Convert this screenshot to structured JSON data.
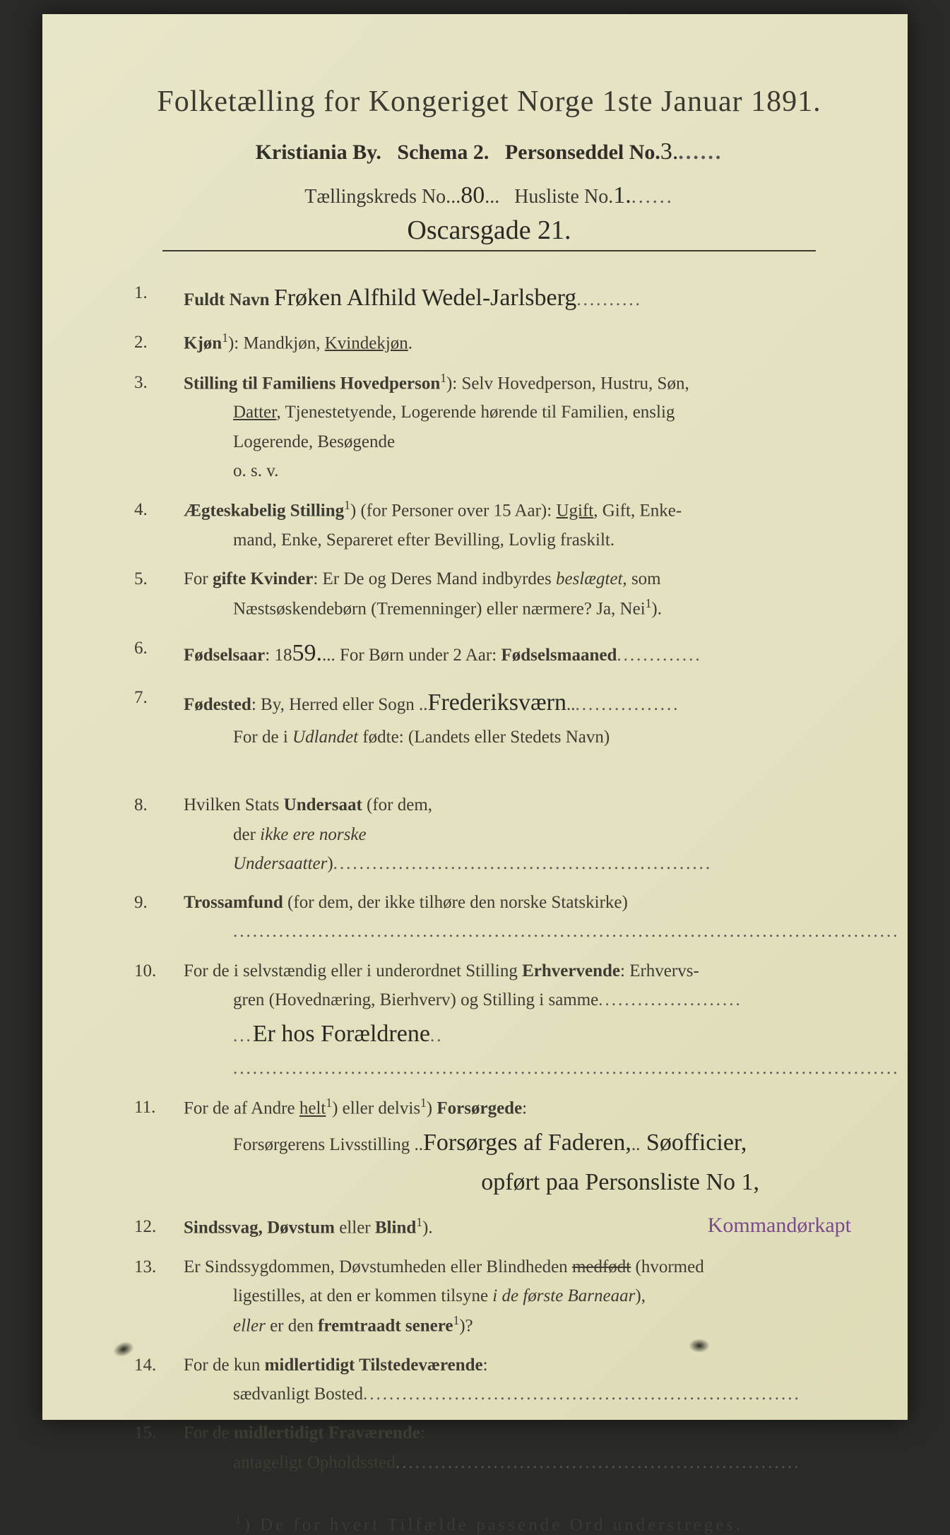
{
  "colors": {
    "paper_bg": "#e4e2c2",
    "print_ink": "#3a3a30",
    "handwriting_ink": "#2a2a24",
    "purple_ink": "#7a4a8a",
    "outer_bg": "#2a2a28"
  },
  "typography": {
    "title_fontsize": 42,
    "subtitle_fontsize": 30,
    "body_fontsize": 25,
    "handwriting_fontsize": 34,
    "letter_spacing_footnote": 4
  },
  "header": {
    "title": "Folketælling for Kongeriget Norge 1ste Januar 1891.",
    "city": "Kristiania By.",
    "schema": "Schema 2.",
    "personseddel_label": "Personseddel No.",
    "personseddel_no": "3.",
    "taellingskreds_label": "Tællingskreds No.",
    "taellingskreds_no": "80",
    "husliste_label": "Husliste No.",
    "husliste_no": "1.",
    "address": "Oscarsgade 21."
  },
  "items": [
    {
      "label": "Fuldt Navn",
      "value_hand": "Frøken Alfhild Wedel-Jarlsberg",
      "trailing_dots": true
    },
    {
      "label": "Kjøn",
      "sup": "1",
      "text_after": "): Mandkjøn, ",
      "underlined": "Kvindekjøn",
      "tail": "."
    },
    {
      "label": "Stilling til Familiens Hovedperson",
      "sup": "1",
      "text_after": "): Selv Hovedperson, Hustru, Søn,",
      "line2_underlined": "Datter",
      "line2_tail": ", Tjenestetyende, Logerende hørende til Familien, enslig",
      "line3": "Logerende, Besøgende",
      "line4": "o. s. v."
    },
    {
      "label": "Ægteskabelig Stilling",
      "sup": "1",
      "text_after": ") (for Personer over 15 Aar): ",
      "underlined": "Ugift",
      "tail": ", Gift, Enke-",
      "line2": "mand, Enke, Separeret efter Bevilling, Lovlig fraskilt."
    },
    {
      "pre": "For ",
      "label": "gifte Kvinder",
      "text_after": ": Er De og Deres Mand indbyrdes ",
      "ital1": "beslægtet,",
      "tail": " som",
      "line2": "Næstsøskendebørn (Tremenninger) eller nærmere?  Ja, Nei",
      "line2_sup": "1",
      "line2_tail": ")."
    },
    {
      "label": "Fødselsaar",
      "text_after": ": 18",
      "value_hand": "59.",
      "mid": "...  For Børn under 2 Aar: ",
      "label2": "Fødselsmaaned",
      "trailing_dots": true
    },
    {
      "label": "Fødested",
      "text_after": ": By, Herred eller Sogn ",
      "value_hand": "Frederiksværn",
      "trailing_dots": true,
      "line2_pre": "For de i ",
      "line2_ital": "Udlandet",
      "line2_tail": " fødte: (Landets eller Stedets Navn)"
    },
    {
      "pre": "Hvilken Stats ",
      "label": "Undersaat",
      "text_after": " (for dem,",
      "line2_pre": "der ",
      "line2_ital": "ikke ere norske Undersaatter",
      "line2_tail": ")",
      "line2_dots": true
    },
    {
      "label": "Trossamfund",
      "text_after": "  (for dem, der ikke tilhøre den norske Statskirke)",
      "line2_dots_full": true
    },
    {
      "pre": "For de i selvstændig eller i underordnet Stilling ",
      "label": "Erhvervende",
      "text_after": ": Erhvervs-",
      "line2": "gren (Hovednæring, Bierhverv) og Stilling i samme",
      "line2_dots": true,
      "line3_hand": "Er hos Forældrene",
      "line4_dots_full": true
    },
    {
      "pre": "For de af Andre ",
      "und1": "helt",
      "sup1": "1",
      "mid1": ") eller delvis",
      "sup2": "1",
      "mid2": ") ",
      "label": "Forsørgede",
      "text_after": ":",
      "line2": "Forsørgerens Livsstilling ",
      "line2_hand": "Forsørges af Faderen,",
      "line2_hand2": " Søofficier,",
      "line3_hand": "opført paa Personsliste No 1,"
    },
    {
      "label": "Sindssvag, Døvstum",
      "text_after": " eller ",
      "label2": "Blind",
      "sup": "1",
      "tail": ").",
      "purple_annotation": "Kommandørkapt"
    },
    {
      "pre": "Er Sindssygdommen, Døvstumheden eller Blindheden ",
      "struck": "medfødt",
      "text_after": " (hvormed",
      "line2_pre": "ligestilles, at den er kommen tilsyne ",
      "line2_ital": "i de første Barneaar",
      "line2_tail": "),",
      "line3_ital1": "eller",
      "line3_mid": " er den ",
      "line3_bold": "fremtraadt senere",
      "line3_sup": "1",
      "line3_tail": ")?"
    },
    {
      "pre": "For de kun ",
      "label": "midlertidigt Tilstedeværende",
      "text_after": ":",
      "line2": "sædvanligt Bosted",
      "line2_dots": true
    },
    {
      "pre": "For de ",
      "label": "midlertidigt Fraværende",
      "text_after": ":",
      "line2": "antageligt Opholdssted",
      "line2_dots": true
    }
  ],
  "footnote": {
    "sup": "1",
    "text": ") De for hvert Tilfælde passende Ord understreges."
  }
}
